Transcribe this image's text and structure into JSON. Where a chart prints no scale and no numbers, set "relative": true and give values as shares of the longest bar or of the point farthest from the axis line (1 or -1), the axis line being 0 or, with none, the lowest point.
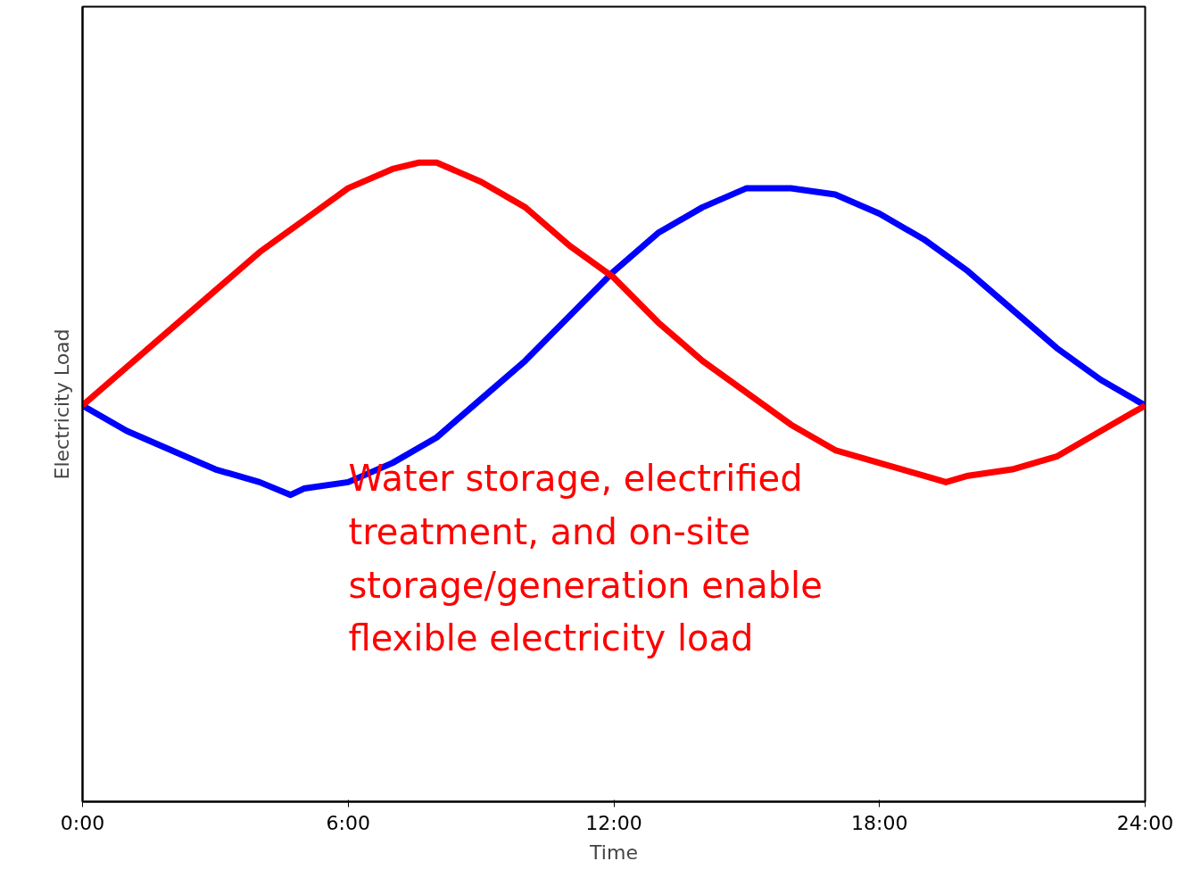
{
  "chart_data": {
    "type": "line",
    "xlabel": "Time",
    "ylabel": "Electricity Load",
    "relative": true,
    "xlim": [
      0,
      24
    ],
    "xticks": [
      {
        "value": 0,
        "label": "0:00"
      },
      {
        "value": 6,
        "label": "6:00"
      },
      {
        "value": 12,
        "label": "12:00"
      },
      {
        "value": 18,
        "label": "18:00"
      },
      {
        "value": 24,
        "label": "24:00"
      }
    ],
    "grid": false,
    "marker": "none",
    "line_style": "solid",
    "annotations": [
      "Water storage, electrified treatment, and on-site storage/generation enable flexible electricity load"
    ],
    "series": [
      {
        "color": "#0000ff",
        "x": [
          0,
          1,
          2,
          3,
          4,
          4.7,
          5,
          6,
          7,
          8,
          9,
          10,
          11,
          12,
          13,
          14,
          15,
          15.6,
          16,
          17,
          18,
          19,
          20,
          21,
          22,
          23,
          24
        ],
        "values": [
          0.62,
          0.58,
          0.55,
          0.52,
          0.5,
          0.48,
          0.49,
          0.5,
          0.53,
          0.57,
          0.63,
          0.69,
          0.76,
          0.83,
          0.89,
          0.93,
          0.96,
          0.96,
          0.96,
          0.95,
          0.92,
          0.88,
          0.83,
          0.77,
          0.71,
          0.66,
          0.62
        ]
      },
      {
        "color": "#ff0000",
        "x": [
          0,
          1,
          2,
          3,
          4,
          5,
          6,
          7,
          7.6,
          8,
          9,
          10,
          11,
          12,
          13,
          14,
          15,
          16,
          17,
          18,
          19,
          19.5,
          20,
          21,
          22,
          23,
          24
        ],
        "values": [
          0.62,
          0.68,
          0.74,
          0.8,
          0.86,
          0.91,
          0.96,
          0.99,
          1.0,
          1.0,
          0.97,
          0.93,
          0.87,
          0.82,
          0.75,
          0.69,
          0.64,
          0.59,
          0.55,
          0.53,
          0.51,
          0.5,
          0.51,
          0.52,
          0.54,
          0.58,
          0.62
        ]
      }
    ]
  }
}
